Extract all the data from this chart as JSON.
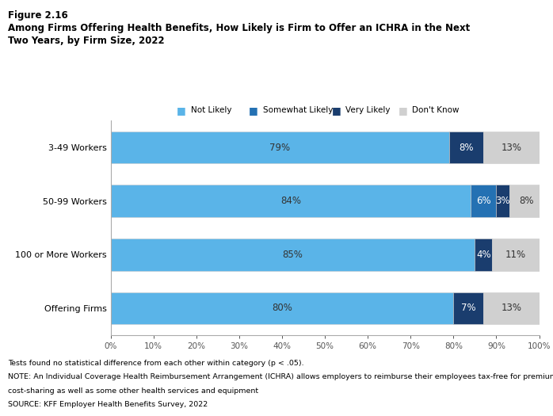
{
  "title_line1": "Figure 2.16",
  "title_line2": "Among Firms Offering Health Benefits, How Likely is Firm to Offer an ICHRA in the Next\nTwo Years, by Firm Size, 2022",
  "categories": [
    "3-49 Workers",
    "50-99 Workers",
    "100 or More Workers",
    "Offering Firms"
  ],
  "series": {
    "Not Likely": [
      79,
      84,
      85,
      80
    ],
    "Somewhat Likely": [
      0,
      6,
      0,
      0
    ],
    "Very Likely": [
      8,
      3,
      4,
      7
    ],
    "Don't Know": [
      13,
      8,
      11,
      13
    ]
  },
  "colors": {
    "Not Likely": "#5ab4e8",
    "Somewhat Likely": "#2471b3",
    "Very Likely": "#1a3d6e",
    "Don't Know": "#d0d0d0"
  },
  "bar_labels": {
    "Not Likely": [
      "79%",
      "84%",
      "85%",
      "80%"
    ],
    "Somewhat Likely": [
      "",
      "6%",
      "",
      ""
    ],
    "Very Likely": [
      "8%",
      "3%",
      "4%",
      "7%"
    ],
    "Don't Know": [
      "13%",
      "8%",
      "11%",
      "13%"
    ]
  },
  "label_colors": {
    "Not Likely": "#333333",
    "Somewhat Likely": "#ffffff",
    "Very Likely": "#ffffff",
    "Don't Know": "#333333"
  },
  "xlim": [
    0,
    100
  ],
  "xticks": [
    0,
    10,
    20,
    30,
    40,
    50,
    60,
    70,
    80,
    90,
    100
  ],
  "footnote1": "Tests found no statistical difference from each other within category (p < .05).",
  "footnote2": "NOTE: An Individual Coverage Health Reimbursement Arrangement (ICHRA) allows employers to reimburse their employees tax-free for premiums,",
  "footnote3": "cost-sharing as well as some other health services and equipment",
  "footnote4": "SOURCE: KFF Employer Health Benefits Survey, 2022",
  "background_color": "#ffffff",
  "bar_height": 0.6
}
